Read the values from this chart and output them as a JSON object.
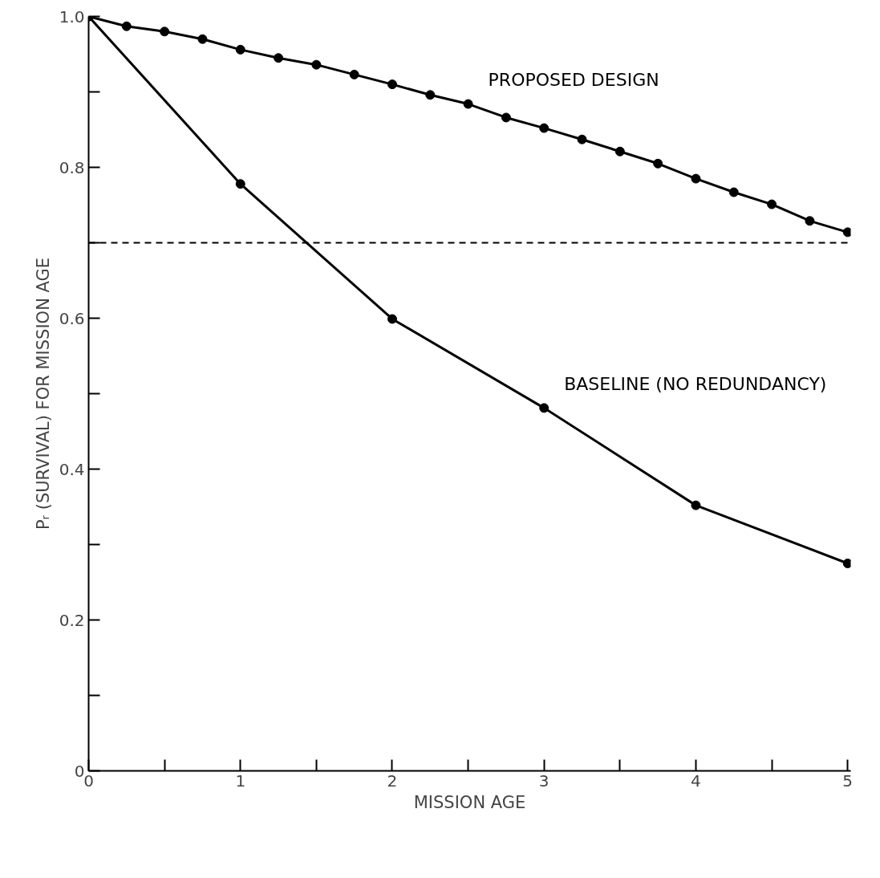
{
  "chart_data": {
    "type": "line",
    "xlabel": "MISSION AGE",
    "ylabel": "Pᵣ (SURVIVAL) FOR MISSION AGE",
    "xlim": [
      0,
      5.02
    ],
    "ylim": [
      0,
      1.0
    ],
    "xticks": [
      0,
      {
        "value": 0.5,
        "label": null
      },
      1,
      {
        "value": 1.5,
        "label": null
      },
      2,
      {
        "value": 2.5,
        "label": null
      },
      3,
      {
        "value": 3.5,
        "label": null
      },
      4,
      {
        "value": 4.5,
        "label": null
      },
      5
    ],
    "yticks": [
      0,
      {
        "value": 0.1,
        "label": null
      },
      0.2,
      {
        "value": 0.3,
        "label": null
      },
      0.4,
      {
        "value": 0.5,
        "label": null
      },
      0.6,
      {
        "value": 0.7,
        "label": null
      },
      0.8,
      {
        "value": 0.9,
        "label": null
      },
      {
        "value": 1.0,
        "label": "1.0"
      }
    ],
    "grid": false,
    "marker": "circle",
    "line_style": "solid",
    "series": [
      {
        "name": "PROPOSED DESIGN",
        "color": "#000000",
        "x": [
          0,
          0.25,
          0.5,
          0.75,
          1,
          1.25,
          1.5,
          1.75,
          2,
          2.25,
          2.5,
          2.75,
          3,
          3.25,
          3.5,
          3.75,
          4,
          4.25,
          4.5,
          4.75,
          5
        ],
        "values": [
          1.0,
          0.987,
          0.98,
          0.97,
          0.956,
          0.945,
          0.936,
          0.923,
          0.91,
          0.896,
          0.884,
          0.866,
          0.852,
          0.837,
          0.821,
          0.805,
          0.785,
          0.767,
          0.751,
          0.729,
          0.714
        ]
      },
      {
        "name": "BASELINE  (NO REDUNDANCY)",
        "color": "#000000",
        "x": [
          0,
          1,
          2,
          3,
          4,
          5
        ],
        "values": [
          1.0,
          0.778,
          0.599,
          0.481,
          0.352,
          0.275
        ]
      }
    ],
    "ref_lines": [
      {
        "axis": "y",
        "value": 0.7,
        "label": null,
        "line_style": "dashed",
        "color": "#000000"
      }
    ]
  }
}
